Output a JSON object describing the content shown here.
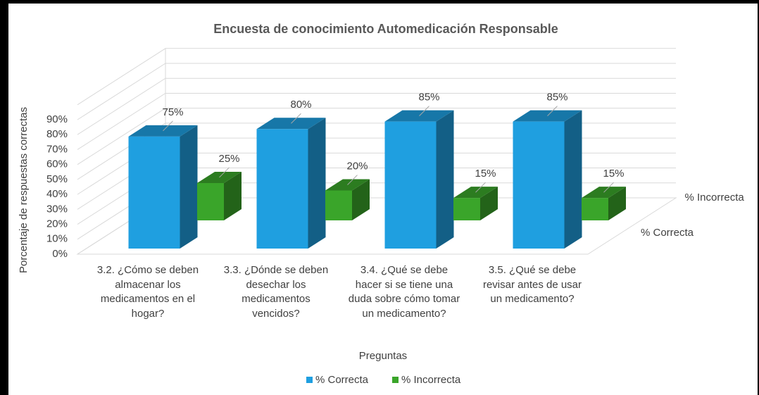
{
  "chart_data": {
    "type": "bar3d",
    "title": "Encuesta de conocimiento Automedicación Responsable",
    "x_label": "Preguntas",
    "y_label": "Porcentaje de respuestas correctas",
    "categories": [
      "3.2. ¿Cómo se deben almacenar los medicamentos en el hogar?",
      "3.3. ¿Dónde se deben desechar los medicamentos vencidos?",
      "3.4. ¿Qué se debe hacer si se tiene una duda sobre cómo tomar un medicamento?",
      "3.5. ¿Qué se debe revisar antes de usar un medicamento?"
    ],
    "series": [
      {
        "name": "% Correcta",
        "color": "#1f9fe0",
        "values": [
          75,
          80,
          85,
          85
        ],
        "value_labels": [
          "75%",
          "80%",
          "85%",
          "85%"
        ]
      },
      {
        "name": "% Incorrecta",
        "color": "#3aa52a",
        "values": [
          25,
          20,
          15,
          15
        ],
        "value_labels": [
          "25%",
          "20%",
          "15%",
          "15%"
        ]
      }
    ],
    "ylim": [
      0,
      100
    ],
    "yticks": [
      {
        "value": 0,
        "label": "0%"
      },
      {
        "value": 10,
        "label": "10%"
      },
      {
        "value": 20,
        "label": "20%"
      },
      {
        "value": 30,
        "label": "30%"
      },
      {
        "value": 40,
        "label": "40%"
      },
      {
        "value": 50,
        "label": "50%"
      },
      {
        "value": 60,
        "label": "60%"
      },
      {
        "value": 70,
        "label": "70%"
      },
      {
        "value": 80,
        "label": "80%"
      },
      {
        "value": 90,
        "label": "90%"
      }
    ],
    "grid": true,
    "legend": "bottom"
  }
}
